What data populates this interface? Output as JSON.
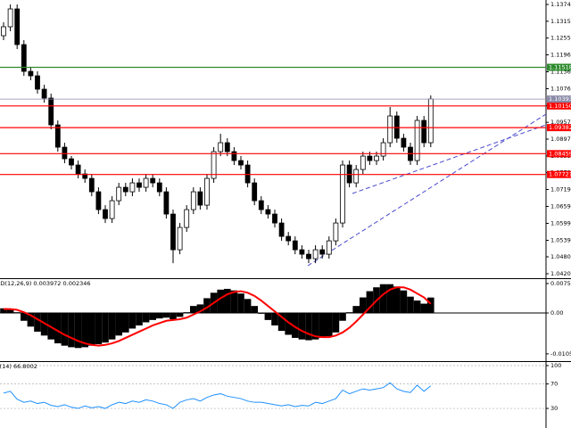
{
  "chart_data": [
    {
      "type": "candlestick",
      "open": [
        1.12639,
        1.12955,
        1.13587,
        1.12323,
        1.11375,
        1.11217,
        1.10743,
        1.10427,
        1.09479,
        1.08689,
        1.08278,
        1.08057,
        1.07741,
        1.07583,
        1.07109,
        1.06477,
        1.06161,
        1.06793,
        1.07267,
        1.07109,
        1.07425,
        1.07267,
        1.07583,
        1.07425,
        1.07109,
        1.06319,
        1.05055,
        1.05845,
        1.06477,
        1.07109,
        1.06635,
        1.07583,
        1.08531,
        1.08847,
        1.08531,
        1.08215,
        1.08057,
        1.07425,
        1.06793,
        1.06477,
        1.06319,
        1.06003,
        1.05529,
        1.05371,
        1.05055,
        1.04897,
        1.04739,
        1.05055,
        1.04897,
        1.05371,
        1.06003,
        1.08057,
        1.07425,
        1.07899,
        1.08373,
        1.08215,
        1.08373,
        1.08847,
        1.09795,
        1.09005,
        1.08689,
        1.08215,
        1.09637,
        1.08847
      ],
      "high": [
        1.13113,
        1.13745,
        1.13745,
        1.12481,
        1.11533,
        1.11375,
        1.10901,
        1.10585,
        1.09637,
        1.08847,
        1.08373,
        1.08215,
        1.07899,
        1.07741,
        1.07267,
        1.06635,
        1.06951,
        1.07425,
        1.07425,
        1.07583,
        1.07583,
        1.07741,
        1.07741,
        1.07583,
        1.07267,
        1.06477,
        1.06003,
        1.06635,
        1.07267,
        1.07267,
        1.07741,
        1.08689,
        1.09163,
        1.09005,
        1.08689,
        1.08373,
        1.08215,
        1.07583,
        1.06951,
        1.06635,
        1.06477,
        1.06161,
        1.05687,
        1.05529,
        1.05213,
        1.05055,
        1.05213,
        1.05213,
        1.05529,
        1.06161,
        1.08215,
        1.08215,
        1.08057,
        1.08531,
        1.08531,
        1.08531,
        1.09005,
        1.10111,
        1.09953,
        1.09163,
        1.08847,
        1.09795,
        1.09795,
        1.10522
      ],
      "low": [
        1.12481,
        1.12797,
        1.12165,
        1.11217,
        1.11059,
        1.10585,
        1.10269,
        1.09321,
        1.08531,
        1.0812,
        1.07899,
        1.07583,
        1.07425,
        1.06951,
        1.06319,
        1.06003,
        1.06003,
        1.06635,
        1.06951,
        1.06951,
        1.07109,
        1.07109,
        1.07267,
        1.06951,
        1.06161,
        1.04581,
        1.04897,
        1.05687,
        1.06319,
        1.06477,
        1.06477,
        1.07425,
        1.08373,
        1.08373,
        1.08057,
        1.07899,
        1.07267,
        1.06635,
        1.06319,
        1.06161,
        1.05845,
        1.05371,
        1.05213,
        1.04897,
        1.04739,
        1.04581,
        1.04581,
        1.04739,
        1.04739,
        1.05213,
        1.05845,
        1.07267,
        1.07267,
        1.07741,
        1.08057,
        1.08057,
        1.08215,
        1.08689,
        1.08847,
        1.08531,
        1.08057,
        1.08057,
        1.08689,
        1.08689
      ],
      "close": [
        1.12955,
        1.13587,
        1.12323,
        1.11375,
        1.11217,
        1.10743,
        1.10427,
        1.09479,
        1.08689,
        1.08278,
        1.08057,
        1.07741,
        1.07583,
        1.07109,
        1.06477,
        1.06161,
        1.06793,
        1.07267,
        1.07109,
        1.07425,
        1.07267,
        1.07583,
        1.07425,
        1.07109,
        1.06319,
        1.05055,
        1.05845,
        1.06477,
        1.07109,
        1.06635,
        1.07583,
        1.08531,
        1.08847,
        1.08531,
        1.08215,
        1.08057,
        1.07425,
        1.06793,
        1.06477,
        1.06319,
        1.06003,
        1.05529,
        1.05371,
        1.05055,
        1.04897,
        1.04739,
        1.05055,
        1.04897,
        1.05371,
        1.06003,
        1.08057,
        1.07425,
        1.07899,
        1.08373,
        1.08215,
        1.08373,
        1.08847,
        1.09795,
        1.09005,
        1.08689,
        1.08215,
        1.09637,
        1.08847,
        1.10393
      ],
      "up_color": "#ffffff",
      "down_color": "#000000",
      "ylim": [
        1.04047,
        1.13903
      ],
      "yticks": [
        1.13745,
        {
          "value": 1.1315,
          "label": "1.13150"
        },
        1.12555,
        {
          "value": 1.1196,
          "label": "1.11960"
        },
        {
          "value": 1.1136,
          "label": "1.11360"
        },
        {
          "value": 1.1076,
          "label": "1.10760"
        },
        1.10165,
        {
          "value": 1.0957,
          "label": "1.09570"
        },
        1.08975,
        {
          "value": 1.0838,
          "label": "1.08380"
        },
        1.07785,
        {
          "value": 1.0719,
          "label": "1.07190"
        },
        {
          "value": 1.0659,
          "label": "1.06590"
        },
        {
          "value": 1.0599,
          "label": "1.05990"
        },
        {
          "value": 1.0539,
          "label": "1.05390"
        },
        1.04805,
        1.04205
      ],
      "levels": [
        {
          "value": 1.11518,
          "color": "#2e8b2e"
        },
        {
          "value": 1.1015,
          "label": "1.10150",
          "color": "#ff0000"
        },
        {
          "value": 1.09382,
          "color": "#ff0000"
        },
        {
          "value": 1.08459,
          "color": "#ff0000"
        },
        {
          "value": 1.07721,
          "color": "#ff0000"
        }
      ],
      "current_price": 1.10393,
      "current_price_color": "#8a8aa8"
    },
    {
      "type": "macd",
      "title": "MACD(12,26,9) 0.003972 0.002346",
      "histogram": [
        0.0012,
        0.001,
        0.0002,
        -0.002,
        -0.0035,
        -0.0048,
        -0.0058,
        -0.0068,
        -0.0078,
        -0.0084,
        -0.0088,
        -0.009,
        -0.0088,
        -0.0084,
        -0.008,
        -0.0076,
        -0.0068,
        -0.0058,
        -0.005,
        -0.004,
        -0.0032,
        -0.0024,
        -0.0018,
        -0.0014,
        -0.0012,
        -0.0016,
        -0.001,
        0.0002,
        0.0018,
        0.0022,
        0.0038,
        0.0052,
        0.006,
        0.0062,
        0.0058,
        0.005,
        0.0036,
        0.0018,
        -0.0002,
        -0.0018,
        -0.0032,
        -0.0046,
        -0.0056,
        -0.0064,
        -0.0068,
        -0.007,
        -0.0068,
        -0.0064,
        -0.006,
        -0.005,
        -0.002,
        0.0002,
        0.0018,
        0.004,
        0.0056,
        0.0066,
        0.0074,
        0.0074,
        0.0068,
        0.0058,
        0.0042,
        0.0032,
        0.0024,
        0.003972
      ],
      "signal": [
        0.001,
        0.001,
        0.0008,
        0.0002,
        -0.0006,
        -0.0016,
        -0.0026,
        -0.0036,
        -0.0046,
        -0.0056,
        -0.0064,
        -0.0072,
        -0.0078,
        -0.0082,
        -0.0084,
        -0.0082,
        -0.0078,
        -0.0072,
        -0.0064,
        -0.0056,
        -0.0048,
        -0.004,
        -0.0032,
        -0.0026,
        -0.002,
        -0.0018,
        -0.0016,
        -0.0012,
        -0.0004,
        0.0004,
        0.0014,
        0.0026,
        0.0038,
        0.0048,
        0.0054,
        0.0056,
        0.0052,
        0.0044,
        0.0032,
        0.0018,
        0.0004,
        -0.001,
        -0.0024,
        -0.0036,
        -0.0046,
        -0.0054,
        -0.006,
        -0.0062,
        -0.0062,
        -0.0058,
        -0.005,
        -0.0038,
        -0.0022,
        -0.0004,
        0.0014,
        0.0032,
        0.0048,
        0.006,
        0.0066,
        0.0066,
        0.006,
        0.005,
        0.004,
        0.002346
      ],
      "histogram_color": "#000000",
      "signal_color": "#ff0000",
      "ylim": [
        -0.01237,
        0.00894
      ],
      "yticks": [
        0.007568,
        {
          "value": 0,
          "label": "0.00"
        },
        -0.01051
      ]
    },
    {
      "type": "line",
      "title": "RSI(14) 66.8002",
      "values": [
        55,
        58,
        45,
        40,
        42,
        38,
        40,
        35,
        33,
        36,
        32,
        30,
        34,
        31,
        33,
        30,
        36,
        40,
        38,
        42,
        40,
        44,
        42,
        38,
        36,
        30,
        40,
        44,
        46,
        42,
        48,
        52,
        54,
        50,
        48,
        46,
        42,
        40,
        40,
        38,
        36,
        34,
        36,
        33,
        35,
        34,
        40,
        38,
        42,
        46,
        60,
        54,
        58,
        62,
        60,
        62,
        64,
        72,
        62,
        58,
        56,
        68,
        58,
        66.8002
      ],
      "color": "#1e90ff",
      "ylim": [
        -2,
        107.3
      ],
      "yticks": [
        100,
        70,
        30
      ],
      "grid": true
    }
  ]
}
